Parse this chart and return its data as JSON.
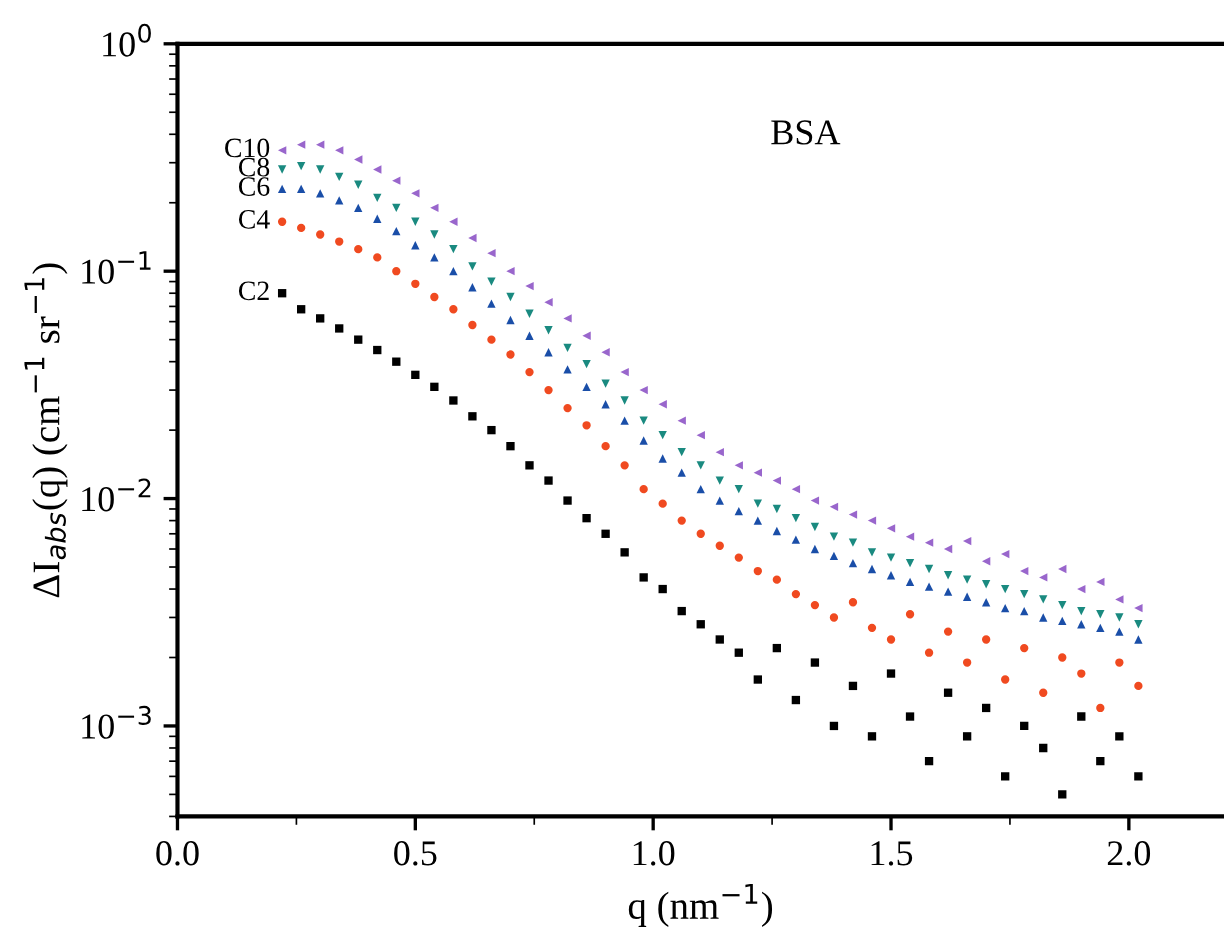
{
  "chart_data": {
    "type": "scatter",
    "xlabel": "q (nm$^{−1}$)",
    "ylabel": "ΔI$_{abs}$(q) (cm$^{−1}$ sr$^{−1}$)",
    "annotations": [
      "BSA"
    ],
    "log": "y",
    "xlim": [
      0,
      2.2
    ],
    "xticks": [
      {
        "value": 0,
        "label": "0.0"
      },
      0.5,
      {
        "value": 1,
        "label": "1.0"
      },
      1.5,
      {
        "value": 2,
        "label": "2.0"
      }
    ],
    "ylim": [
      0.0004,
      1
    ],
    "yticks": [
      {
        "value": 0.001,
        "label": "10$^{−3}$"
      },
      {
        "value": 0.01,
        "label": "10$^{−2}$"
      },
      {
        "value": 0.1,
        "label": "10$^{−1}$"
      },
      {
        "value": 1,
        "label": "10$^{0}$"
      }
    ],
    "grid": false,
    "legend": false,
    "x": [
      0.22,
      0.26,
      0.3,
      0.34,
      0.38,
      0.42,
      0.46,
      0.5,
      0.54,
      0.58,
      0.62,
      0.66,
      0.7,
      0.74,
      0.78,
      0.82,
      0.86,
      0.9,
      0.94,
      0.98,
      1.02,
      1.06,
      1.1,
      1.14,
      1.18,
      1.22,
      1.26,
      1.3,
      1.34,
      1.38,
      1.42,
      1.46,
      1.5,
      1.54,
      1.58,
      1.62,
      1.66,
      1.7,
      1.74,
      1.78,
      1.82,
      1.86,
      1.9,
      1.94,
      1.98,
      2.02
    ],
    "series": [
      {
        "name": "C2",
        "color": "#000000",
        "marker": "square",
        "values": [
          0.08,
          0.068,
          0.062,
          0.056,
          0.05,
          0.045,
          0.04,
          0.035,
          0.031,
          0.027,
          0.023,
          0.02,
          0.017,
          0.014,
          0.012,
          0.0098,
          0.0082,
          0.007,
          0.0058,
          0.0045,
          0.004,
          0.0032,
          0.0028,
          0.0024,
          0.0021,
          0.0016,
          0.0022,
          0.0013,
          0.0019,
          0.001,
          0.0015,
          0.0009,
          0.0017,
          0.0011,
          0.0007,
          0.0014,
          0.0009,
          0.0012,
          0.0006,
          0.001,
          0.0008,
          0.0005,
          0.0011,
          0.0007,
          0.0009,
          0.0006
        ]
      },
      {
        "name": "C4",
        "color": "#f04a20",
        "marker": "circle",
        "values": [
          0.165,
          0.155,
          0.145,
          0.135,
          0.125,
          0.115,
          0.1,
          0.088,
          0.077,
          0.068,
          0.058,
          0.05,
          0.043,
          0.036,
          0.03,
          0.025,
          0.021,
          0.017,
          0.014,
          0.011,
          0.0095,
          0.008,
          0.007,
          0.0062,
          0.0055,
          0.0048,
          0.0044,
          0.0038,
          0.0034,
          0.003,
          0.0035,
          0.0027,
          0.0024,
          0.0031,
          0.0021,
          0.0026,
          0.0019,
          0.0024,
          0.0016,
          0.0022,
          0.0014,
          0.002,
          0.0017,
          0.0012,
          0.0019,
          0.0015
        ]
      },
      {
        "name": "C6",
        "color": "#1a4ea8",
        "marker": "triangle",
        "values": [
          0.23,
          0.23,
          0.22,
          0.205,
          0.19,
          0.17,
          0.15,
          0.13,
          0.115,
          0.1,
          0.085,
          0.072,
          0.061,
          0.052,
          0.044,
          0.037,
          0.031,
          0.026,
          0.022,
          0.018,
          0.015,
          0.013,
          0.011,
          0.0098,
          0.0088,
          0.008,
          0.0072,
          0.0066,
          0.006,
          0.0056,
          0.0052,
          0.0049,
          0.0046,
          0.0043,
          0.0041,
          0.0039,
          0.0037,
          0.0035,
          0.0033,
          0.0032,
          0.003,
          0.0029,
          0.0028,
          0.0027,
          0.0026,
          0.0024
        ]
      },
      {
        "name": "C8",
        "color": "#1a8a80",
        "marker": "triangle_down",
        "values": [
          0.28,
          0.29,
          0.28,
          0.26,
          0.24,
          0.21,
          0.19,
          0.165,
          0.145,
          0.125,
          0.105,
          0.09,
          0.077,
          0.065,
          0.055,
          0.046,
          0.039,
          0.032,
          0.027,
          0.022,
          0.019,
          0.016,
          0.014,
          0.012,
          0.011,
          0.0095,
          0.009,
          0.0082,
          0.0075,
          0.0068,
          0.0064,
          0.0058,
          0.0055,
          0.0052,
          0.0049,
          0.0046,
          0.0044,
          0.0042,
          0.004,
          0.0038,
          0.0036,
          0.0034,
          0.0032,
          0.0031,
          0.003,
          0.0028
        ]
      },
      {
        "name": "C10",
        "color": "#9966cc",
        "marker": "triangle_left",
        "values": [
          0.34,
          0.36,
          0.36,
          0.34,
          0.31,
          0.28,
          0.25,
          0.22,
          0.19,
          0.165,
          0.14,
          0.12,
          0.1,
          0.086,
          0.073,
          0.062,
          0.052,
          0.044,
          0.036,
          0.03,
          0.026,
          0.022,
          0.019,
          0.016,
          0.014,
          0.013,
          0.012,
          0.011,
          0.0098,
          0.0092,
          0.0085,
          0.008,
          0.0074,
          0.0068,
          0.0064,
          0.006,
          0.0065,
          0.0053,
          0.0057,
          0.0048,
          0.0045,
          0.0049,
          0.004,
          0.0043,
          0.0036,
          0.0033
        ]
      }
    ]
  }
}
